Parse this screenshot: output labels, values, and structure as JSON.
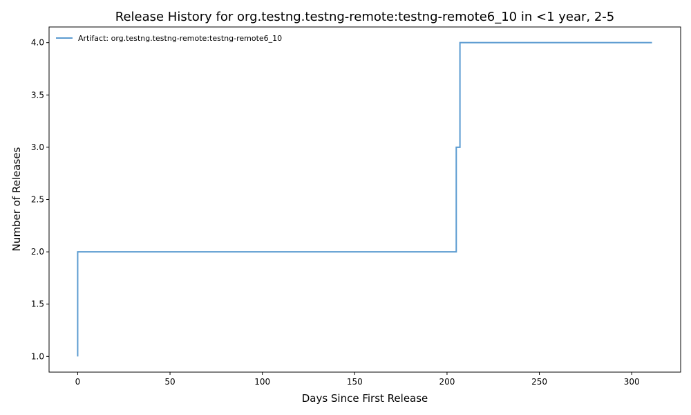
{
  "chart_data": {
    "type": "line",
    "step": "post",
    "title": "Release History for org.testng.testng-remote:testng-remote6_10 in <1 year, 2-5",
    "xlabel": "Days Since First Release",
    "ylabel": "Number of Releases",
    "xlim": [
      -15.5,
      326.5
    ],
    "ylim": [
      0.85,
      4.15
    ],
    "xticks": [
      0,
      50,
      100,
      150,
      200,
      250,
      300
    ],
    "xtick_labels": [
      "0",
      "50",
      "100",
      "150",
      "200",
      "250",
      "300"
    ],
    "yticks": [
      1.0,
      1.5,
      2.0,
      2.5,
      3.0,
      3.5,
      4.0
    ],
    "ytick_labels": [
      "1.0",
      "1.5",
      "2.0",
      "2.5",
      "3.0",
      "3.5",
      "4.0"
    ],
    "grid": false,
    "legend_position": "top-left",
    "series": [
      {
        "name": "Artifact: org.testng.testng-remote:testng-remote6_10",
        "color": "#5b9bd0",
        "x": [
          0,
          0,
          205,
          207,
          311
        ],
        "y": [
          1,
          2,
          3,
          4,
          4
        ]
      }
    ]
  }
}
